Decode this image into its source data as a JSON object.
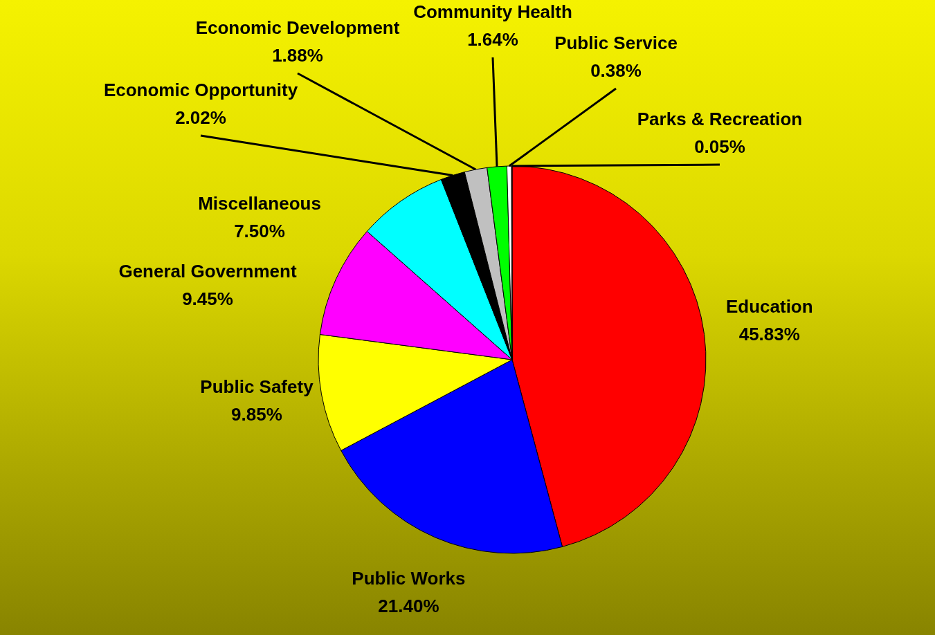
{
  "chart_data": {
    "type": "pie",
    "categories": [
      "Education",
      "Public Works",
      "Public Safety",
      "General Government",
      "Miscellaneous",
      "Economic Opportunity",
      "Economic Development",
      "Community Health",
      "Public Service",
      "Parks & Recreation"
    ],
    "values": [
      45.83,
      21.4,
      9.85,
      9.45,
      7.5,
      2.02,
      1.88,
      1.64,
      0.38,
      0.05
    ],
    "value_labels": [
      "45.83%",
      "21.40%",
      "9.85%",
      "9.45%",
      "7.50%",
      "2.02%",
      "1.88%",
      "1.64%",
      "0.38%",
      "0.05%"
    ],
    "colors": [
      "#ff0000",
      "#0000ff",
      "#ffff00",
      "#ff00ff",
      "#00ffff",
      "#000000",
      "#c0c0c0",
      "#00ff00",
      "#ffffff",
      "#ff8080"
    ],
    "data_labels": false
  }
}
